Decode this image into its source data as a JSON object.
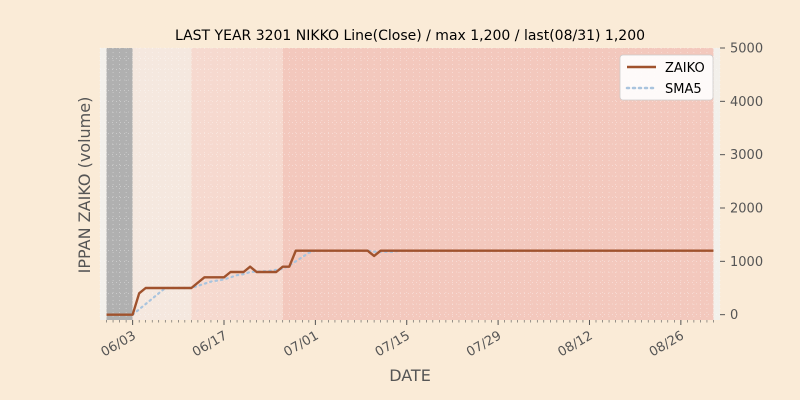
{
  "chart_data": {
    "type": "line",
    "title": "LAST YEAR 3201 NIKKO Line(Close) / max 1,200 / last(08/31) 1,200",
    "xlabel": "DATE",
    "ylabel": "IPPAN ZAIKO (volume)",
    "x_start": "2024-05-30",
    "x_end": "2024-08-31",
    "xlim": [
      "2024-05-29",
      "2024-09-01"
    ],
    "ylim": [
      -100,
      5000
    ],
    "y_ticks": [
      0,
      1000,
      2000,
      3000,
      4000,
      5000
    ],
    "y_tick_labels": [
      "0",
      "1000",
      "2000",
      "3000",
      "4000",
      "5000"
    ],
    "y_axis_side": "right",
    "x_ticks": [
      "2024-06-03",
      "2024-06-17",
      "2024-07-01",
      "2024-07-15",
      "2024-07-29",
      "2024-08-12",
      "2024-08-26"
    ],
    "x_tick_labels": [
      "06/03",
      "06/17",
      "07/01",
      "07/15",
      "07/29",
      "08/12",
      "08/26"
    ],
    "grid": true,
    "legend_position": "top-right",
    "series": [
      {
        "name": "ZAIKO",
        "color": "#a0522d",
        "style": "solid",
        "points": [
          [
            "2024-05-30",
            0
          ],
          [
            "2024-06-02",
            0
          ],
          [
            "2024-06-03",
            0
          ],
          [
            "2024-06-04",
            400
          ],
          [
            "2024-06-05",
            500
          ],
          [
            "2024-06-12",
            500
          ],
          [
            "2024-06-14",
            700
          ],
          [
            "2024-06-17",
            700
          ],
          [
            "2024-06-18",
            800
          ],
          [
            "2024-06-20",
            800
          ],
          [
            "2024-06-21",
            900
          ],
          [
            "2024-06-22",
            800
          ],
          [
            "2024-06-25",
            800
          ],
          [
            "2024-06-26",
            900
          ],
          [
            "2024-06-27",
            900
          ],
          [
            "2024-06-28",
            1200
          ],
          [
            "2024-07-09",
            1200
          ],
          [
            "2024-07-10",
            1100
          ],
          [
            "2024-07-11",
            1200
          ],
          [
            "2024-08-31",
            1200
          ]
        ]
      },
      {
        "name": "SMA5",
        "color": "#a9c4de",
        "style": "dotted",
        "points": [
          [
            "2024-06-03",
            0
          ],
          [
            "2024-06-04",
            100
          ],
          [
            "2024-06-05",
            200
          ],
          [
            "2024-06-06",
            300
          ],
          [
            "2024-06-07",
            400
          ],
          [
            "2024-06-08",
            500
          ],
          [
            "2024-06-12",
            500
          ],
          [
            "2024-06-13",
            540
          ],
          [
            "2024-06-14",
            580
          ],
          [
            "2024-06-15",
            620
          ],
          [
            "2024-06-17",
            660
          ],
          [
            "2024-06-18",
            700
          ],
          [
            "2024-06-19",
            740
          ],
          [
            "2024-06-20",
            760
          ],
          [
            "2024-06-21",
            800
          ],
          [
            "2024-06-24",
            820
          ],
          [
            "2024-06-26",
            860
          ],
          [
            "2024-06-27",
            920
          ],
          [
            "2024-06-28",
            1000
          ],
          [
            "2024-06-29",
            1080
          ],
          [
            "2024-06-30",
            1160
          ],
          [
            "2024-07-01",
            1200
          ],
          [
            "2024-07-09",
            1200
          ],
          [
            "2024-07-10",
            1180
          ],
          [
            "2024-07-11",
            1180
          ],
          [
            "2024-07-12",
            1180
          ],
          [
            "2024-07-13",
            1180
          ],
          [
            "2024-07-14",
            1200
          ],
          [
            "2024-08-31",
            1200
          ]
        ]
      }
    ],
    "background_bands": [
      {
        "from": "2024-05-29",
        "to": "2024-05-30",
        "color": "#f3f0eb"
      },
      {
        "from": "2024-05-30",
        "to": "2024-06-03",
        "color": "#b0b0b0"
      },
      {
        "from": "2024-06-03",
        "to": "2024-06-12",
        "color": "#f5e8df"
      },
      {
        "from": "2024-06-12",
        "to": "2024-06-26",
        "color": "#f6d9cf"
      },
      {
        "from": "2024-06-26",
        "to": "2024-08-31",
        "color": "#f3c8bd"
      },
      {
        "from": "2024-08-31",
        "to": "2024-09-01",
        "color": "#f3f0eb"
      }
    ]
  }
}
